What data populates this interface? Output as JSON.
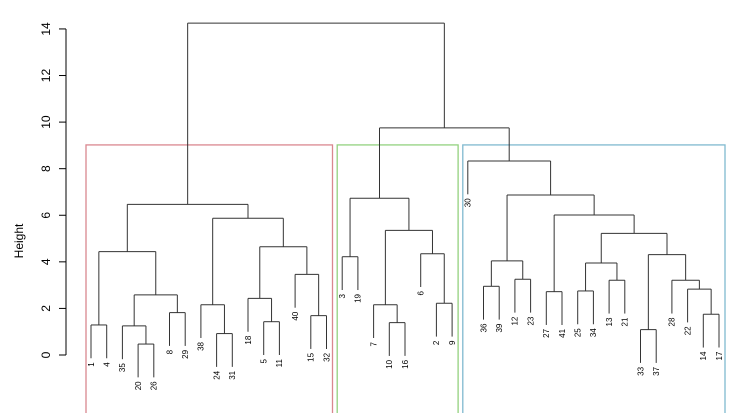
{
  "chart_data": {
    "type": "dendrogram",
    "title": "",
    "xlabel": "",
    "ylabel": "Height",
    "ylim": [
      0,
      14.5
    ],
    "y_ticks": [
      0,
      2,
      4,
      6,
      8,
      10,
      12,
      14
    ],
    "hang": 1.43,
    "cut_height": 9.02,
    "clusters": [
      {
        "first_leaf_index": 0,
        "last_leaf_index": 15,
        "color": "#d9878f"
      },
      {
        "first_leaf_index": 16,
        "last_leaf_index": 23,
        "color": "#93d17f"
      },
      {
        "first_leaf_index": 24,
        "last_leaf_index": 40,
        "color": "#80b9cf"
      }
    ],
    "tree": {
      "h": 14.25,
      "c": [
        {
          "h": 6.47,
          "c": [
            {
              "h": 4.44,
              "c": [
                {
                  "h": 1.29,
                  "c": [
                    "1",
                    "4"
                  ]
                },
                {
                  "h": 2.58,
                  "c": [
                    {
                      "h": 1.25,
                      "c": [
                        "35",
                        {
                          "h": 0.47,
                          "c": [
                            "20",
                            "26"
                          ]
                        }
                      ]
                    },
                    {
                      "h": 1.82,
                      "c": [
                        "8",
                        "29"
                      ]
                    }
                  ]
                }
              ]
            },
            {
              "h": 5.87,
              "c": [
                {
                  "h": 2.16,
                  "c": [
                    "38",
                    {
                      "h": 0.92,
                      "c": [
                        "24",
                        "31"
                      ]
                    }
                  ]
                },
                {
                  "h": 4.65,
                  "c": [
                    {
                      "h": 2.43,
                      "c": [
                        "18",
                        {
                          "h": 1.43,
                          "c": [
                            "5",
                            "11"
                          ]
                        }
                      ]
                    },
                    {
                      "h": 3.46,
                      "c": [
                        "40",
                        {
                          "h": 1.69,
                          "c": [
                            "15",
                            "32"
                          ]
                        }
                      ]
                    }
                  ]
                }
              ]
            }
          ]
        },
        {
          "h": 9.75,
          "c": [
            {
              "h": 6.73,
              "c": [
                {
                  "h": 4.22,
                  "c": [
                    "3",
                    "19"
                  ]
                },
                {
                  "h": 5.35,
                  "c": [
                    {
                      "h": 2.16,
                      "c": [
                        "7",
                        {
                          "h": 1.39,
                          "c": [
                            "10",
                            "16"
                          ]
                        }
                      ]
                    },
                    {
                      "h": 4.35,
                      "c": [
                        "6",
                        {
                          "h": 2.22,
                          "c": [
                            "2",
                            "9"
                          ]
                        }
                      ]
                    }
                  ]
                }
              ]
            },
            {
              "h": 8.33,
              "c": [
                "30",
                {
                  "h": 6.87,
                  "c": [
                    {
                      "h": 4.04,
                      "c": [
                        {
                          "h": 2.95,
                          "c": [
                            "36",
                            "39"
                          ]
                        },
                        {
                          "h": 3.25,
                          "c": [
                            "12",
                            "23"
                          ]
                        }
                      ]
                    },
                    {
                      "h": 6.01,
                      "c": [
                        {
                          "h": 2.72,
                          "c": [
                            "27",
                            "41"
                          ]
                        },
                        {
                          "h": 5.22,
                          "c": [
                            {
                              "h": 3.95,
                              "c": [
                                {
                                  "h": 2.75,
                                  "c": [
                                    "25",
                                    "34"
                                  ]
                                },
                                {
                                  "h": 3.21,
                                  "c": [
                                    "13",
                                    "21"
                                  ]
                                }
                              ]
                            },
                            {
                              "h": 4.31,
                              "c": [
                                {
                                  "h": 1.09,
                                  "c": [
                                    "33",
                                    "37"
                                  ]
                                },
                                {
                                  "h": 3.21,
                                  "c": [
                                    "28",
                                    {
                                      "h": 2.83,
                                      "c": [
                                        "22",
                                        {
                                          "h": 1.75,
                                          "c": [
                                            "14",
                                            "17"
                                          ]
                                        }
                                      ]
                                    }
                                  ]
                                }
                              ]
                            }
                          ]
                        }
                      ]
                    }
                  ]
                }
              ]
            }
          ]
        }
      ]
    }
  }
}
